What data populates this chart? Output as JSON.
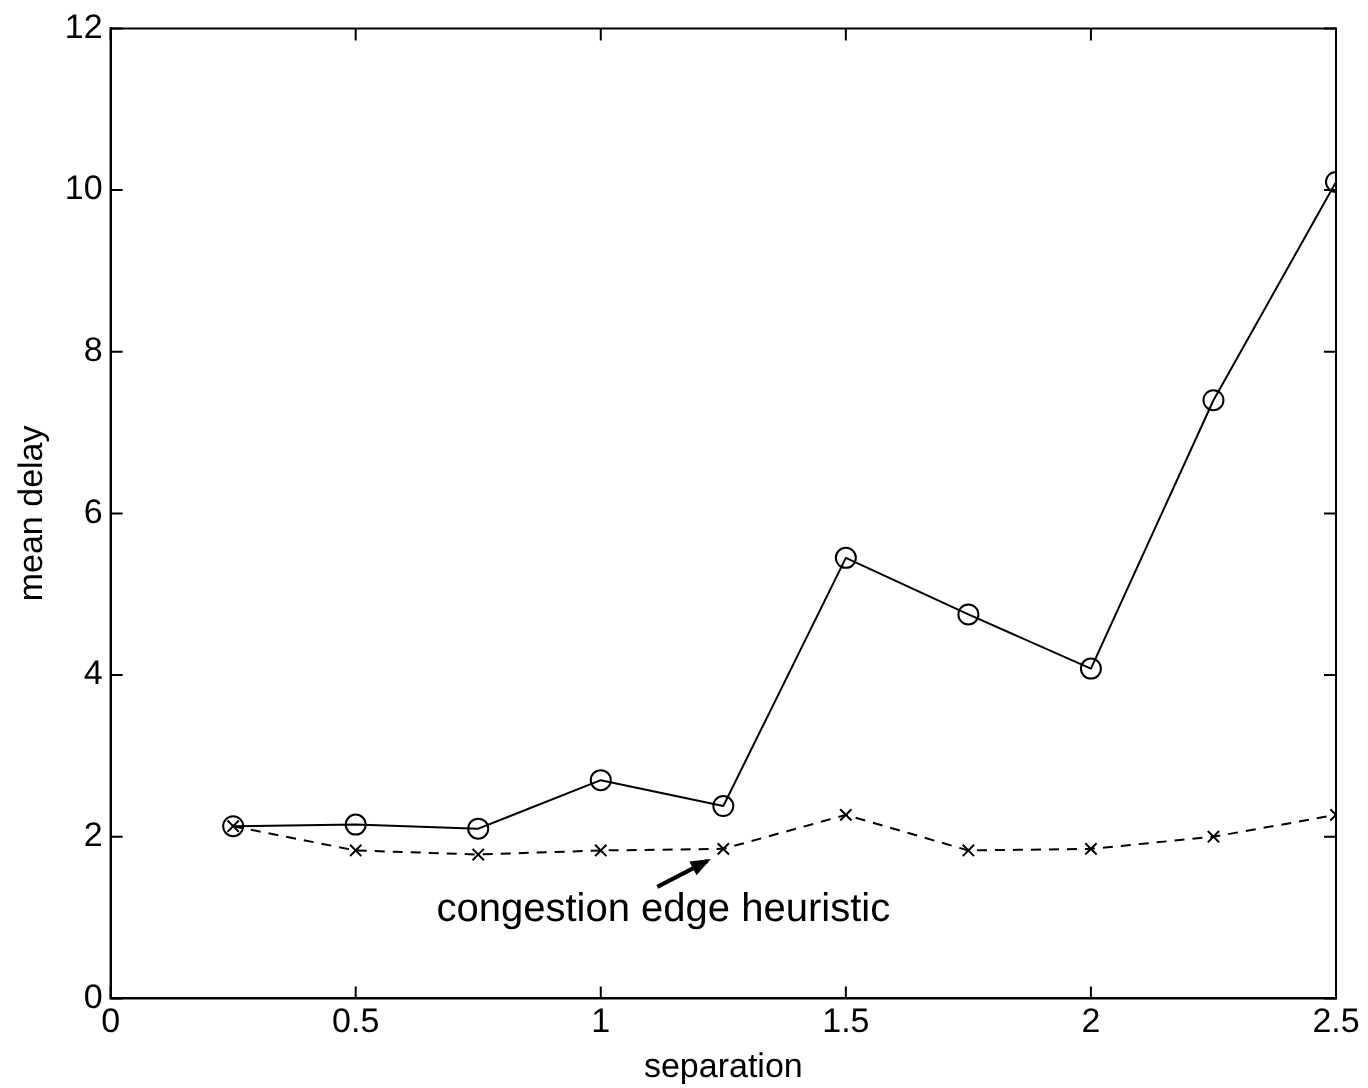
{
  "chart_data": {
    "type": "line",
    "xlabel": "separation",
    "ylabel": "mean delay",
    "x": [
      0.25,
      0.5,
      0.75,
      1,
      1.25,
      1.5,
      1.75,
      2,
      2.25,
      2.5
    ],
    "series": [
      {
        "color": "#000000",
        "marker": "circle",
        "line_style": "solid",
        "values": [
          2.13,
          2.15,
          2.1,
          2.7,
          2.38,
          5.45,
          4.75,
          4.08,
          7.4,
          10.1
        ]
      },
      {
        "color": "#000000",
        "marker": "cross",
        "line_style": "dashed",
        "values": [
          2.13,
          1.83,
          1.78,
          1.83,
          1.85,
          2.27,
          1.83,
          1.85,
          2.0,
          2.27
        ]
      }
    ],
    "xlim": [
      0,
      2.5
    ],
    "xticks": [
      0,
      0.5,
      1,
      1.5,
      2,
      2.5
    ],
    "ylim": [
      0,
      12
    ],
    "yticks": [
      0,
      2,
      4,
      6,
      8,
      10,
      12
    ],
    "grid": false,
    "legend": false,
    "annotations": [
      {
        "text": "congestion edge heuristic",
        "x": 1.25,
        "y": 1.85
      }
    ]
  }
}
